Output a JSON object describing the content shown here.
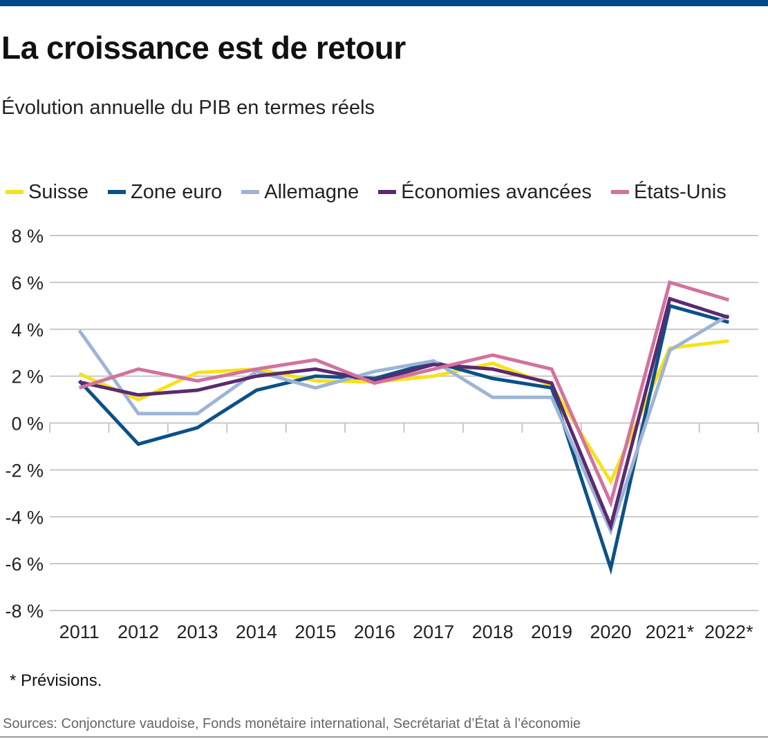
{
  "header": {
    "title": "La croissance est de retour",
    "subtitle": "Évolution annuelle du PIB en termes réels"
  },
  "footnote": "* Prévisions.",
  "sources": "Sources: Conjoncture vaudoise, Fonds monétaire international, Secrétariat d’État à l’économie",
  "colors": {
    "brand_bar": "#004a87",
    "suisse": "#f6e21a",
    "zone_euro": "#0b5189",
    "allemagne": "#9db4d6",
    "economies_avancees": "#5b2a6e",
    "etats_unis": "#d2729f"
  },
  "chart_data": {
    "type": "line",
    "title": "La croissance est de retour",
    "subtitle": "Évolution annuelle du PIB en termes réels",
    "xlabel": "",
    "ylabel": "",
    "categories": [
      "2011",
      "2012",
      "2013",
      "2014",
      "2015",
      "2016",
      "2017",
      "2018",
      "2019",
      "2020",
      "2021*",
      "2022*"
    ],
    "ylim": [
      -8,
      8
    ],
    "yticks": [
      8,
      6,
      4,
      2,
      0,
      -2,
      -4,
      -6,
      -8
    ],
    "ytick_labels": [
      "8 %",
      "6 %",
      "4 %",
      "2 %",
      "0 %",
      "-2 %",
      "-4 %",
      "-6 %",
      "-8 %"
    ],
    "grid": true,
    "legend_position": "top",
    "series": [
      {
        "name": "Suisse",
        "key": "suisse",
        "color": "#f6e21a",
        "values": [
          2.1,
          1.0,
          2.15,
          2.3,
          1.8,
          1.75,
          2.0,
          2.55,
          1.6,
          -2.5,
          3.2,
          3.5
        ]
      },
      {
        "name": "Zone euro",
        "key": "zone_euro",
        "color": "#0b5189",
        "values": [
          1.8,
          -0.9,
          -0.2,
          1.4,
          2.0,
          1.9,
          2.6,
          1.9,
          1.5,
          -6.2,
          5.0,
          4.3
        ]
      },
      {
        "name": "Allemagne",
        "key": "allemagne",
        "color": "#9db4d6",
        "values": [
          3.95,
          0.4,
          0.4,
          2.2,
          1.5,
          2.2,
          2.65,
          1.1,
          1.1,
          -4.6,
          3.1,
          4.6
        ]
      },
      {
        "name": "Économies avancées",
        "key": "economies_avancees",
        "color": "#5b2a6e",
        "values": [
          1.75,
          1.2,
          1.4,
          2.0,
          2.3,
          1.8,
          2.5,
          2.3,
          1.7,
          -4.4,
          5.3,
          4.5
        ]
      },
      {
        "name": "États-Unis",
        "key": "etats_unis",
        "color": "#d2729f",
        "values": [
          1.5,
          2.3,
          1.8,
          2.3,
          2.7,
          1.7,
          2.3,
          2.9,
          2.3,
          -3.4,
          6.0,
          5.25
        ]
      }
    ]
  }
}
